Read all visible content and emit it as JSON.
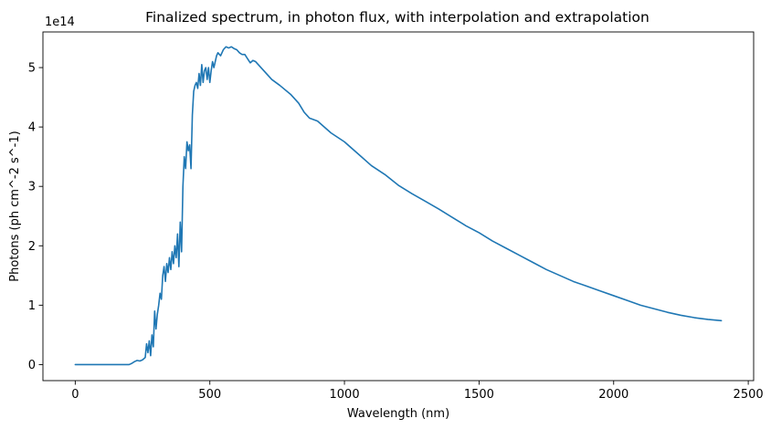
{
  "chart_data": {
    "type": "line",
    "title": "Finalized spectrum, in photon flux, with interpolation and extrapolation",
    "xlabel": "Wavelength (nm)",
    "ylabel": "Photons (ph cm^-2 s^-1)",
    "y_offset_label": "1e14",
    "xlim": [
      -120,
      2520
    ],
    "ylim": [
      -0.27,
      5.6
    ],
    "xticks": [
      0,
      500,
      1000,
      1500,
      2000,
      2500
    ],
    "xtick_labels": [
      "0",
      "500",
      "1000",
      "1500",
      "2000",
      "2500"
    ],
    "yticks": [
      0,
      1,
      2,
      3,
      4,
      5
    ],
    "ytick_labels": [
      "0",
      "1",
      "2",
      "3",
      "4",
      "5"
    ],
    "grid": false,
    "series": [
      {
        "color": "#1f77b4",
        "x": [
          0,
          100,
          200,
          210,
          220,
          230,
          240,
          250,
          260,
          265,
          270,
          275,
          280,
          285,
          290,
          295,
          300,
          305,
          310,
          315,
          320,
          325,
          330,
          335,
          340,
          345,
          350,
          355,
          360,
          365,
          370,
          375,
          380,
          385,
          390,
          395,
          400,
          405,
          410,
          415,
          420,
          425,
          430,
          435,
          440,
          445,
          450,
          455,
          460,
          465,
          470,
          475,
          480,
          485,
          490,
          495,
          500,
          505,
          510,
          515,
          520,
          525,
          530,
          540,
          550,
          560,
          570,
          580,
          590,
          600,
          610,
          620,
          630,
          640,
          650,
          660,
          670,
          680,
          700,
          730,
          760,
          800,
          830,
          850,
          870,
          900,
          950,
          1000,
          1050,
          1100,
          1150,
          1200,
          1250,
          1300,
          1350,
          1400,
          1450,
          1500,
          1550,
          1600,
          1650,
          1700,
          1750,
          1800,
          1850,
          1900,
          1950,
          2000,
          2050,
          2100,
          2150,
          2200,
          2250,
          2300,
          2350,
          2400
        ],
        "values": [
          0,
          0,
          0,
          0.02,
          0.05,
          0.07,
          0.06,
          0.08,
          0.12,
          0.35,
          0.2,
          0.4,
          0.15,
          0.5,
          0.3,
          0.9,
          0.6,
          0.85,
          1.0,
          1.2,
          1.1,
          1.5,
          1.65,
          1.4,
          1.7,
          1.55,
          1.8,
          1.6,
          1.9,
          1.7,
          2.0,
          1.8,
          2.2,
          1.65,
          2.4,
          1.9,
          3.0,
          3.5,
          3.3,
          3.75,
          3.6,
          3.7,
          3.3,
          4.2,
          4.6,
          4.7,
          4.75,
          4.65,
          4.9,
          4.7,
          5.05,
          4.75,
          4.95,
          5.0,
          4.8,
          5.0,
          4.75,
          4.95,
          5.1,
          5.0,
          5.1,
          5.2,
          5.25,
          5.2,
          5.3,
          5.35,
          5.33,
          5.35,
          5.32,
          5.3,
          5.25,
          5.22,
          5.22,
          5.15,
          5.08,
          5.12,
          5.1,
          5.05,
          4.95,
          4.8,
          4.7,
          4.55,
          4.4,
          4.25,
          4.15,
          4.1,
          3.9,
          3.75,
          3.55,
          3.35,
          3.2,
          3.02,
          2.88,
          2.75,
          2.62,
          2.48,
          2.34,
          2.22,
          2.08,
          1.96,
          1.84,
          1.72,
          1.6,
          1.5,
          1.4,
          1.32,
          1.24,
          1.16,
          1.08,
          1.0,
          0.94,
          0.88,
          0.83,
          0.79,
          0.76,
          0.74
        ]
      }
    ]
  }
}
